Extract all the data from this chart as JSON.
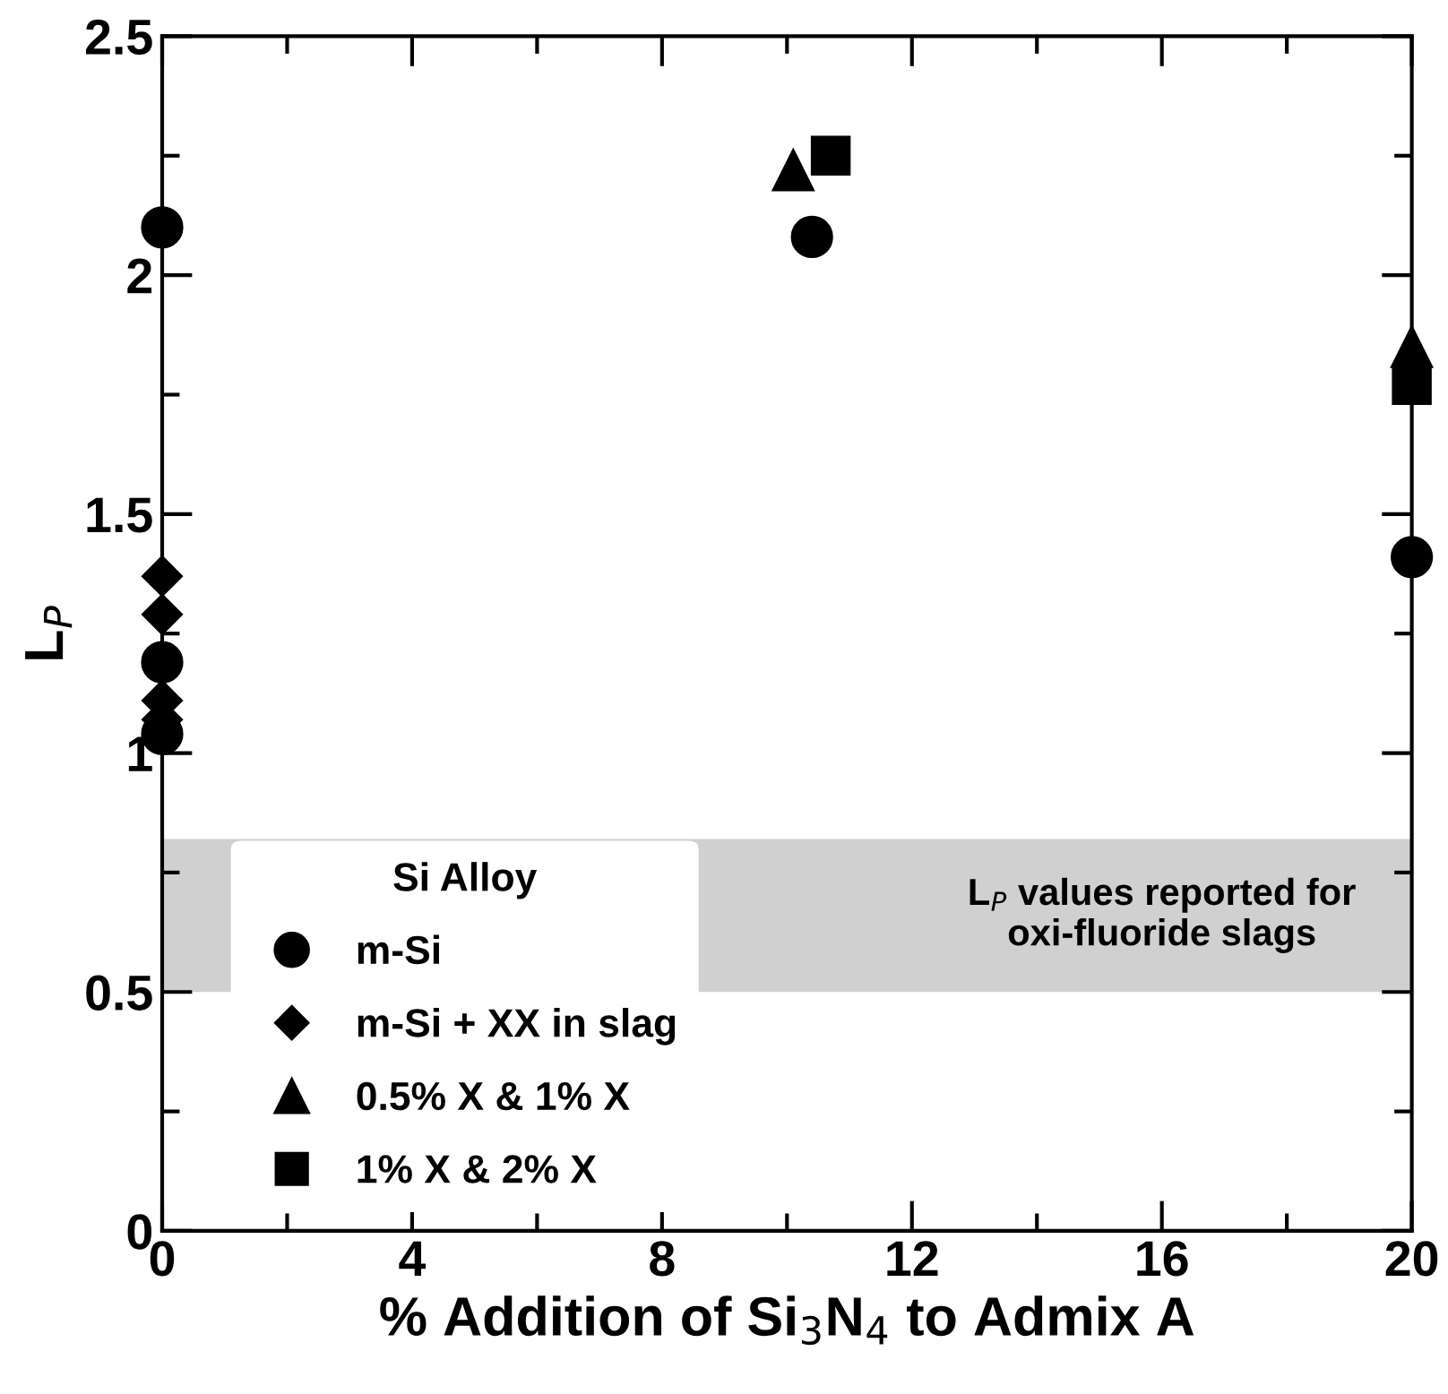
{
  "chart_data": {
    "type": "scatter",
    "xlabel": "% Addition of Si$_{3}$N$_{4}$ to Admix A",
    "ylabel": "L$_{P}$",
    "legend_title": "Si Alloy",
    "legend": "bottom left",
    "xlim": [
      0,
      20
    ],
    "xticks": [
      0,
      4,
      8,
      12,
      16,
      20
    ],
    "ylim": [
      0,
      2.5
    ],
    "yticks": [
      0,
      0.5,
      1,
      1.5,
      2,
      2.5
    ],
    "grid": false,
    "series": [
      {
        "name": "m-Si",
        "color": "#000000",
        "marker": "circle",
        "x": [
          0,
          0,
          0,
          10.4,
          20
        ],
        "values": [
          2.1,
          1.19,
          1.04,
          2.08,
          1.41
        ]
      },
      {
        "name": "m-Si + XX in slag",
        "color": "#000000",
        "marker": "diamond",
        "x": [
          0,
          0,
          0,
          0
        ],
        "values": [
          1.37,
          1.29,
          1.11,
          1.07
        ]
      },
      {
        "name": "0.5% X & 1% X",
        "color": "#000000",
        "marker": "triangle",
        "x": [
          10.1,
          20
        ],
        "values": [
          2.22,
          1.85
        ]
      },
      {
        "name": "1% X & 2% X",
        "color": "#000000",
        "marker": "square",
        "x": [
          10.7,
          20
        ],
        "values": [
          2.25,
          1.77
        ]
      }
    ],
    "bands": [
      {
        "axis": "y",
        "from": 0.5,
        "to": 0.82,
        "color": "#d0d0d0",
        "label": "L$_{P}$ values reported for oxi-fluoride slags"
      }
    ]
  }
}
